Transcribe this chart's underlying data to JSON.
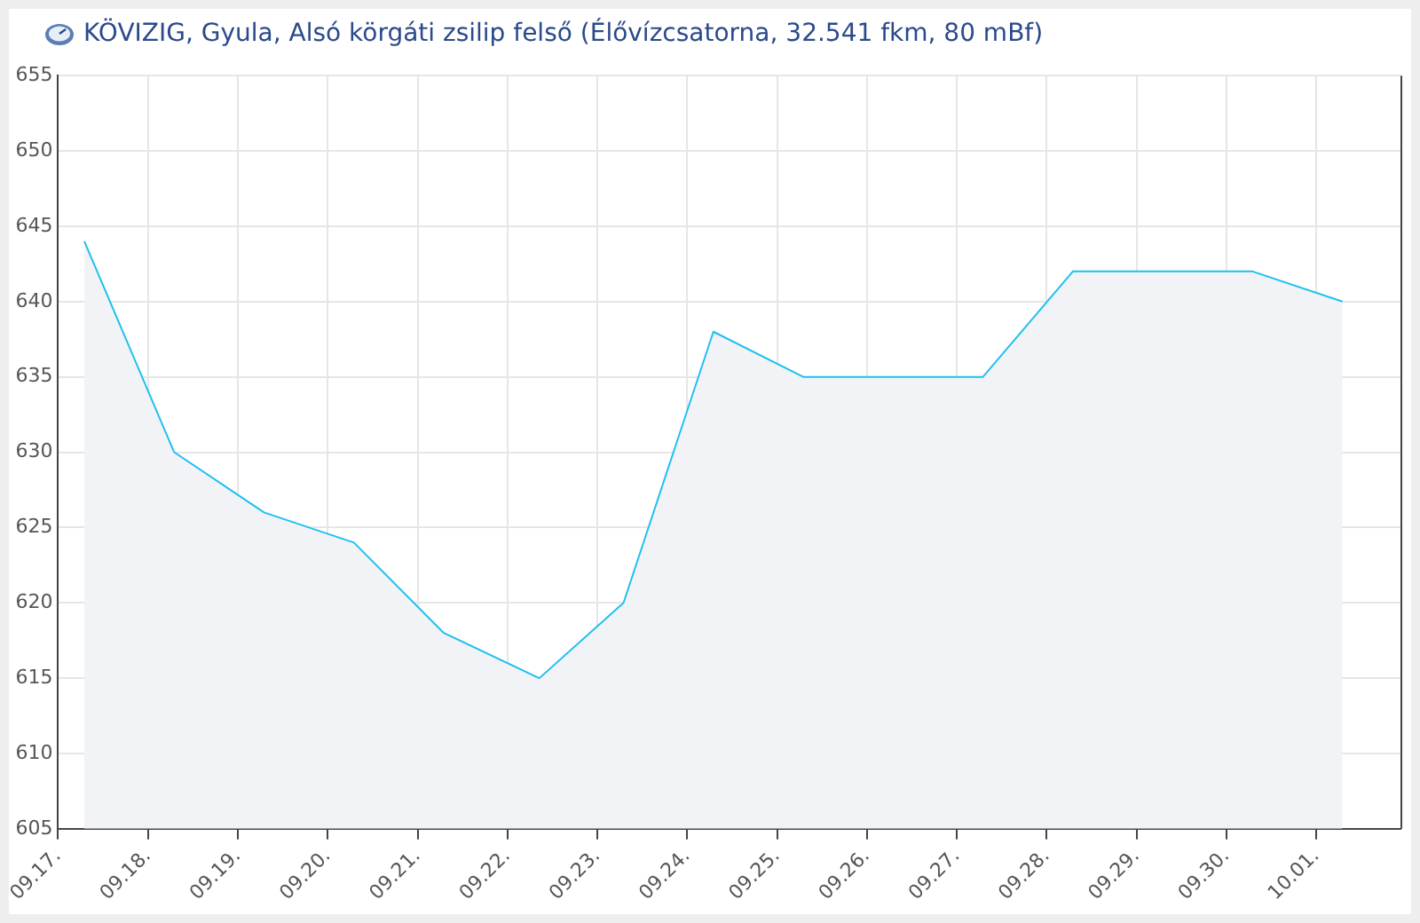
{
  "chart_data": {
    "type": "area",
    "title": "KÖVIZIG, Gyula, Alsó körgáti zsilip felső (Élővízcsatorna, 32.541 fkm, 80 mBf)",
    "x": [
      "--09-17T07:00",
      "--09-18T07:00",
      "--09-19T07:00",
      "--09-20T07:00",
      "--09-21T07:00",
      "--09-22T08:30",
      "--09-23T07:00",
      "--09-24T07:00",
      "--09-25T07:00",
      "--09-27T07:00",
      "--09-28T07:00",
      "--09-30T07:00",
      "--10-01T07:00"
    ],
    "series": [
      {
        "color": "#1ec0f0",
        "values": [
          644,
          630,
          626,
          624,
          618,
          615,
          620,
          638,
          635,
          635,
          642,
          642,
          640
        ]
      }
    ],
    "xlim": [
      "--09-17",
      "--10-01T22:30"
    ],
    "xticks": [
      {
        "value": "--09-17",
        "label": "09.17."
      },
      {
        "value": "--09-18",
        "label": "09.18."
      },
      {
        "value": "--09-19",
        "label": "09.19."
      },
      {
        "value": "--09-20",
        "label": "09.20."
      },
      {
        "value": "--09-21",
        "label": "09.21."
      },
      {
        "value": "--09-22",
        "label": "09.22."
      },
      {
        "value": "--09-23",
        "label": "09.23."
      },
      {
        "value": "--09-24",
        "label": "09.24."
      },
      {
        "value": "--09-25",
        "label": "09.25."
      },
      {
        "value": "--09-26",
        "label": "09.26."
      },
      {
        "value": "--09-27",
        "label": "09.27."
      },
      {
        "value": "--09-28",
        "label": "09.28."
      },
      {
        "value": "--09-29",
        "label": "09.29."
      },
      {
        "value": "--09-30",
        "label": "09.30."
      },
      {
        "value": "--10-01",
        "label": "10.01."
      }
    ],
    "ylim": [
      605,
      655
    ],
    "yticks": [
      605,
      610,
      615,
      620,
      625,
      630,
      635,
      640,
      645,
      650,
      655
    ],
    "grid": true,
    "legend": false,
    "marker": "none",
    "line_style": "solid"
  }
}
